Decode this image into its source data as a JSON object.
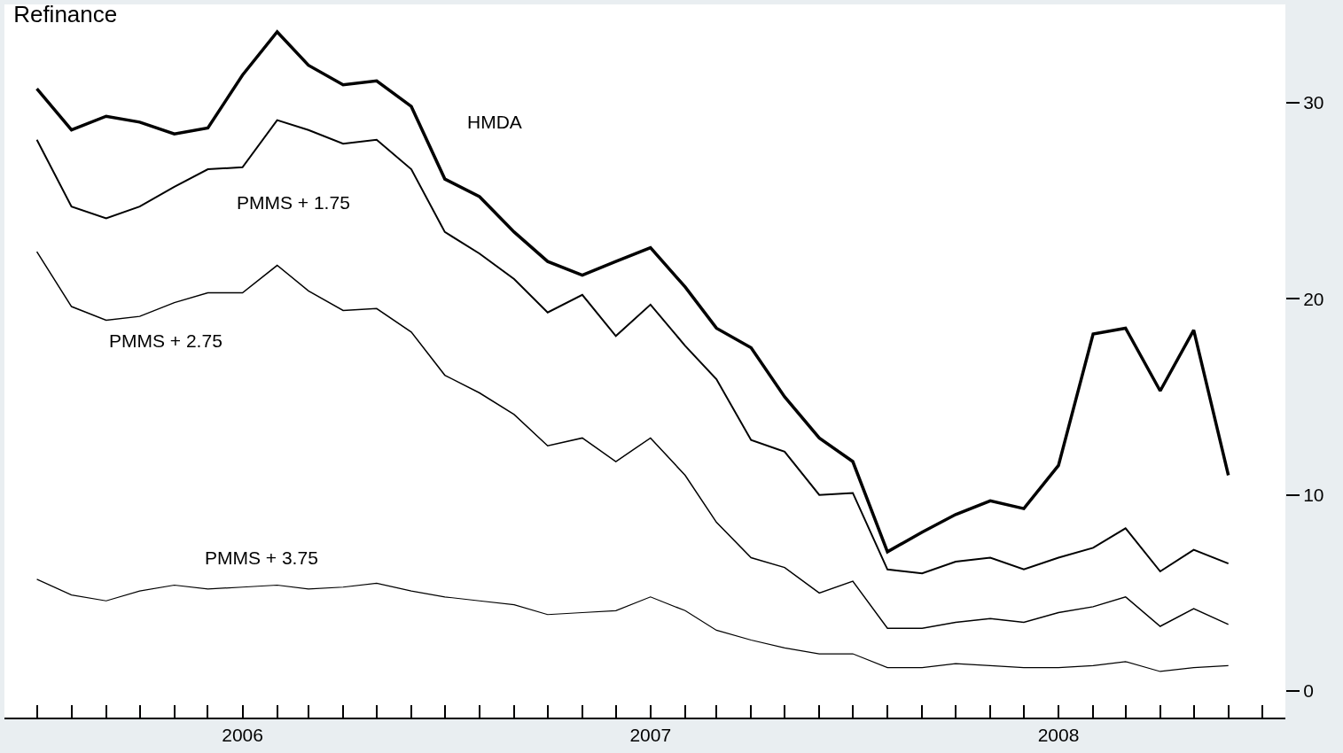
{
  "chart_data": {
    "type": "line",
    "title": "Refinance",
    "x": [
      "2005-07",
      "2005-08",
      "2005-09",
      "2005-10",
      "2005-11",
      "2005-12",
      "2006-01",
      "2006-02",
      "2006-03",
      "2006-04",
      "2006-05",
      "2006-06",
      "2006-07",
      "2006-08",
      "2006-09",
      "2006-10",
      "2006-11",
      "2006-12",
      "2007-01",
      "2007-02",
      "2007-03",
      "2007-04",
      "2007-05",
      "2007-06",
      "2007-07",
      "2007-08",
      "2007-09",
      "2007-10",
      "2007-11",
      "2007-12",
      "2008-01",
      "2008-02",
      "2008-03",
      "2008-04",
      "2008-05",
      "2008-06"
    ],
    "series": [
      {
        "name": "HMDA",
        "color": "#000000",
        "values": [
          30.7,
          28.6,
          29.3,
          29.0,
          28.4,
          28.7,
          31.4,
          33.6,
          31.9,
          30.9,
          31.1,
          29.8,
          26.1,
          25.2,
          23.4,
          21.9,
          21.2,
          21.9,
          22.6,
          20.6,
          18.5,
          17.5,
          15.0,
          12.9,
          11.7,
          7.1,
          8.1,
          9.0,
          9.7,
          9.3,
          11.5,
          18.2,
          18.5,
          15.3,
          18.4,
          11.0
        ]
      },
      {
        "name": "PMMS + 1.75",
        "color": "#000000",
        "values": [
          28.1,
          24.7,
          24.1,
          24.7,
          25.7,
          26.6,
          26.7,
          29.1,
          28.6,
          27.9,
          28.1,
          26.6,
          23.4,
          22.3,
          21.0,
          19.3,
          20.2,
          18.1,
          19.7,
          17.6,
          15.9,
          12.8,
          12.2,
          10.0,
          10.1,
          6.2,
          6.0,
          6.6,
          6.8,
          6.2,
          6.8,
          7.3,
          8.3,
          6.1,
          7.2,
          6.5
        ]
      },
      {
        "name": "PMMS + 2.75",
        "color": "#000000",
        "values": [
          22.4,
          19.6,
          18.9,
          19.1,
          19.8,
          20.3,
          20.3,
          21.7,
          20.4,
          19.4,
          19.5,
          18.3,
          16.1,
          15.2,
          14.1,
          12.5,
          12.9,
          11.7,
          12.9,
          11.0,
          8.6,
          6.8,
          6.3,
          5.0,
          5.6,
          3.2,
          3.2,
          3.5,
          3.7,
          3.5,
          4.0,
          4.3,
          4.8,
          3.3,
          4.2,
          3.4
        ]
      },
      {
        "name": "PMMS + 3.75",
        "color": "#000000",
        "values": [
          5.7,
          4.9,
          4.6,
          5.1,
          5.4,
          5.2,
          5.3,
          5.4,
          5.2,
          5.3,
          5.5,
          5.1,
          4.8,
          4.6,
          4.4,
          3.9,
          4.0,
          4.1,
          4.8,
          4.1,
          3.1,
          2.6,
          2.2,
          1.9,
          1.9,
          1.2,
          1.2,
          1.4,
          1.3,
          1.2,
          1.2,
          1.3,
          1.5,
          1.0,
          1.2,
          1.3
        ]
      }
    ],
    "ylim": [
      -1.35,
      35
    ],
    "yticks": [
      0,
      10,
      20,
      30
    ],
    "xlim": [
      "2005-06-02",
      "2008-07-22"
    ],
    "xticks": [
      {
        "value": "2005-07",
        "label": null
      },
      {
        "value": "2005-08",
        "label": null
      },
      {
        "value": "2005-09",
        "label": null
      },
      {
        "value": "2005-10",
        "label": null
      },
      {
        "value": "2005-11",
        "label": null
      },
      {
        "value": "2005-12",
        "label": null
      },
      {
        "value": "2006-01",
        "label": "2006"
      },
      {
        "value": "2006-02",
        "label": null
      },
      {
        "value": "2006-03",
        "label": null
      },
      {
        "value": "2006-04",
        "label": null
      },
      {
        "value": "2006-05",
        "label": null
      },
      {
        "value": "2006-06",
        "label": null
      },
      {
        "value": "2006-07",
        "label": null
      },
      {
        "value": "2006-08",
        "label": null
      },
      {
        "value": "2006-09",
        "label": null
      },
      {
        "value": "2006-10",
        "label": null
      },
      {
        "value": "2006-11",
        "label": null
      },
      {
        "value": "2006-12",
        "label": null
      },
      {
        "value": "2007-01",
        "label": "2007"
      },
      {
        "value": "2007-02",
        "label": null
      },
      {
        "value": "2007-03",
        "label": null
      },
      {
        "value": "2007-04",
        "label": null
      },
      {
        "value": "2007-05",
        "label": null
      },
      {
        "value": "2007-06",
        "label": null
      },
      {
        "value": "2007-07",
        "label": null
      },
      {
        "value": "2007-08",
        "label": null
      },
      {
        "value": "2007-09",
        "label": null
      },
      {
        "value": "2007-10",
        "label": null
      },
      {
        "value": "2007-11",
        "label": null
      },
      {
        "value": "2007-12",
        "label": null
      },
      {
        "value": "2008-01",
        "label": "2008"
      },
      {
        "value": "2008-02",
        "label": null
      },
      {
        "value": "2008-03",
        "label": null
      },
      {
        "value": "2008-04",
        "label": null
      },
      {
        "value": "2008-05",
        "label": null
      },
      {
        "value": "2008-06",
        "label": null
      },
      {
        "value": "2008-07",
        "label": null
      }
    ],
    "legend": false,
    "marker": "none",
    "line_style": "solid"
  }
}
